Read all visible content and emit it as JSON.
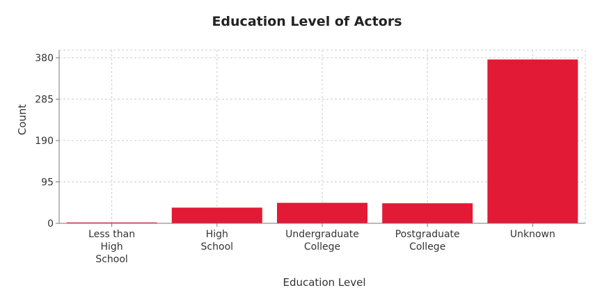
{
  "chart_data": {
    "type": "bar",
    "title": "Education Level of Actors",
    "xlabel": "Education Level",
    "ylabel": "Count",
    "categories": [
      [
        "Less than",
        "High",
        "School"
      ],
      [
        "High",
        "School"
      ],
      [
        "Undergraduate",
        "College"
      ],
      [
        "Postgraduate",
        "College"
      ],
      [
        "Unknown"
      ]
    ],
    "values": [
      2,
      36,
      47,
      46,
      376
    ],
    "ylim": [
      0,
      380
    ],
    "yticks": [
      0,
      95,
      190,
      285,
      380
    ],
    "grid": true,
    "bar_color": "#e31a35"
  }
}
